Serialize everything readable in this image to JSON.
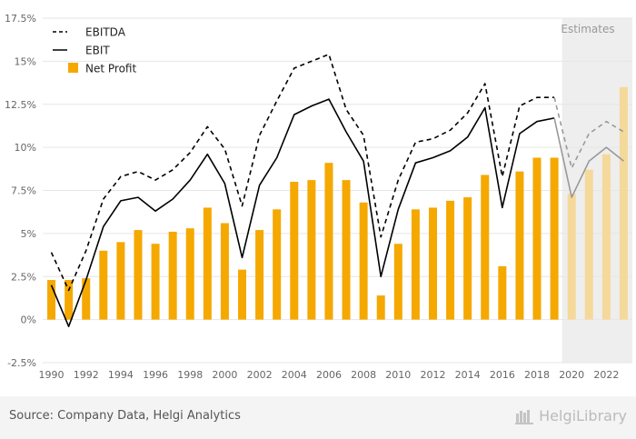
{
  "chart_data": {
    "type": "bar",
    "x": [
      1990,
      1991,
      1992,
      1993,
      1994,
      1995,
      1996,
      1997,
      1998,
      1999,
      2000,
      2001,
      2002,
      2003,
      2004,
      2005,
      2006,
      2007,
      2008,
      2009,
      2010,
      2011,
      2012,
      2013,
      2014,
      2015,
      2016,
      2017,
      2018,
      2019,
      2020,
      2021,
      2022,
      2023
    ],
    "estimate_start": 2020,
    "estimates_label": "Estimates",
    "ylim": [
      -2.5,
      17.5
    ],
    "yticks": [
      -2.5,
      0,
      2.5,
      5,
      7.5,
      10,
      12.5,
      15,
      17.5
    ],
    "ytick_labels": [
      "-2.5%",
      "0%",
      "2.5%",
      "5%",
      "7.5%",
      "10%",
      "12.5%",
      "15%",
      "17.5%"
    ],
    "xticks": [
      1990,
      1992,
      1994,
      1996,
      1998,
      2000,
      2002,
      2004,
      2006,
      2008,
      2010,
      2012,
      2014,
      2016,
      2018,
      2020,
      2022
    ],
    "grid": true,
    "legend_position": "top-left",
    "series": [
      {
        "name": "EBITDA",
        "kind": "line",
        "style": "dashed",
        "color": "#000000",
        "values": [
          3.9,
          1.7,
          4.0,
          7.0,
          8.3,
          8.6,
          8.1,
          8.7,
          9.7,
          11.2,
          9.9,
          6.6,
          10.7,
          12.7,
          14.6,
          15.0,
          15.4,
          12.2,
          10.7,
          4.8,
          8.1,
          10.3,
          10.5,
          11.0,
          12.0,
          13.7,
          8.3,
          12.4,
          12.9,
          12.9,
          8.8,
          10.8,
          11.5,
          10.9
        ]
      },
      {
        "name": "EBIT",
        "kind": "line",
        "style": "solid",
        "color": "#000000",
        "values": [
          2.0,
          -0.4,
          2.3,
          5.4,
          6.9,
          7.1,
          6.3,
          7.0,
          8.1,
          9.6,
          7.9,
          3.6,
          7.8,
          9.4,
          11.9,
          12.4,
          12.8,
          10.9,
          9.2,
          2.5,
          6.4,
          9.1,
          9.4,
          9.8,
          10.6,
          12.3,
          6.5,
          10.8,
          11.5,
          11.7,
          7.1,
          9.2,
          10.0,
          9.2
        ]
      },
      {
        "name": "Net Profit",
        "kind": "bar",
        "color": "#f5a800",
        "values": [
          2.3,
          2.3,
          2.4,
          4.0,
          4.5,
          5.2,
          4.4,
          5.1,
          5.3,
          6.5,
          5.6,
          2.9,
          5.2,
          6.4,
          8.0,
          8.1,
          9.1,
          8.1,
          6.8,
          1.4,
          4.4,
          6.4,
          6.5,
          6.9,
          7.1,
          8.4,
          3.1,
          8.6,
          9.4,
          9.4,
          7.3,
          8.7,
          9.6,
          13.5
        ]
      }
    ]
  },
  "footer": {
    "source": "Source: Company Data, Helgi Analytics",
    "logo_text": "HelgiLibrary"
  },
  "colors": {
    "bar": "#f5a800",
    "bar_estimate": "#f5d99a",
    "line": "#000000",
    "line_estimate": "#999999",
    "estimate_band": "#eeeeee",
    "grid": "#e6e6e6"
  }
}
